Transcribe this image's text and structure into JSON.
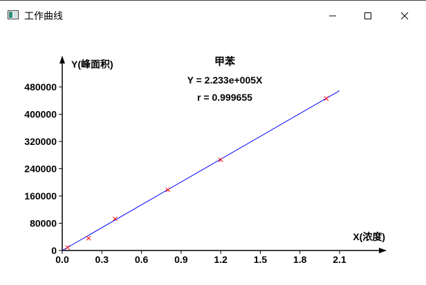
{
  "window": {
    "title": "工作曲线",
    "icons": [
      "app-icon",
      "minimize-icon",
      "maximize-icon",
      "close-icon"
    ]
  },
  "chart_data": {
    "type": "scatter",
    "title": "甲苯",
    "equation": "Y = 2.233e+005X",
    "r_label": "r = 0.999655",
    "xlabel": "X(浓度)",
    "ylabel": "Y(峰面积)",
    "xlim": [
      0,
      2.1
    ],
    "ylim": [
      0,
      480000
    ],
    "x_ticks": [
      "0.0",
      "0.3",
      "0.6",
      "0.9",
      "1.2",
      "1.5",
      "1.8",
      "2.1"
    ],
    "y_ticks": [
      "0",
      "80000",
      "160000",
      "240000",
      "320000",
      "400000",
      "480000"
    ],
    "fit": {
      "slope": 223300,
      "intercept": 0,
      "x_range": [
        0,
        2.1
      ],
      "color": "#0000ff"
    },
    "points": [
      {
        "x": 0.04,
        "y": 9000
      },
      {
        "x": 0.2,
        "y": 36000
      },
      {
        "x": 0.4,
        "y": 93000
      },
      {
        "x": 0.8,
        "y": 178000
      },
      {
        "x": 1.2,
        "y": 266000
      },
      {
        "x": 2.0,
        "y": 446000
      }
    ],
    "marker_color": "#ff0000",
    "grid": false
  }
}
